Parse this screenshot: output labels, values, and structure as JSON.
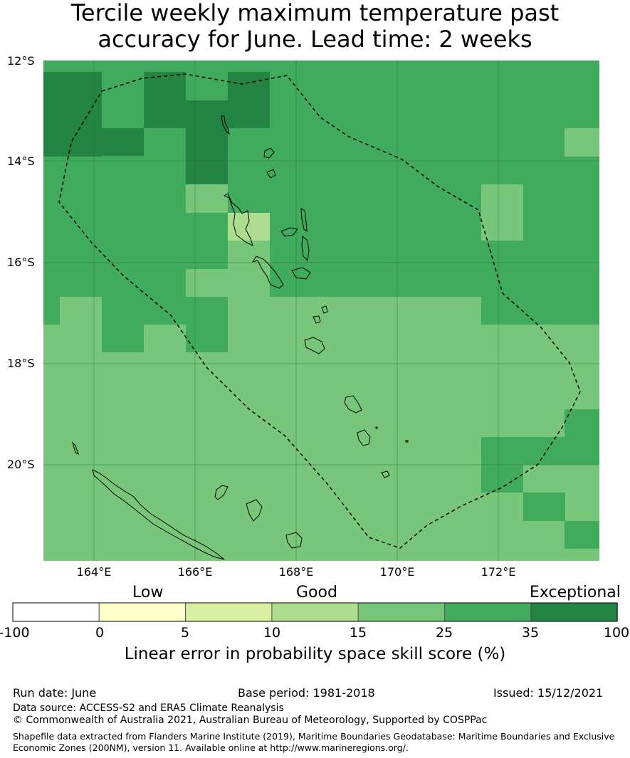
{
  "title_line1": "Tercile weekly maximum temperature past",
  "title_line2": "accuracy for June. Lead time: 2 weeks",
  "map": {
    "lat_range": [
      -21.8,
      -12.0
    ],
    "lon_range": [
      163.0,
      174.0
    ],
    "lat_ticks": [
      "12°S",
      "14°S",
      "16°S",
      "18°S",
      "20°S"
    ],
    "lon_ticks": [
      "164°E",
      "166°E",
      "168°E",
      "170°E",
      "172°E"
    ],
    "grid": true,
    "cell_degrees": 0.83
  },
  "legend": {
    "categories": [
      "Low",
      "Good",
      "Exceptional"
    ],
    "ticks": [
      "-100",
      "0",
      "5",
      "10",
      "15",
      "25",
      "35",
      "100"
    ],
    "colors": [
      "#ffffff",
      "#ffffcc",
      "#d9f0a3",
      "#addd8e",
      "#78c679",
      "#41ab5d",
      "#238443"
    ],
    "label": "Linear error in probability space skill score (%)"
  },
  "footer": {
    "run_date": "Run date: June",
    "base_period": "Base period: 1981-2018",
    "issued": "Issued: 15/12/2021",
    "data_source": "Data source: ACCESS-S2 and ERA5 Climate Reanalysis",
    "copyright": "© Commonwealth of Australia 2021, Australian Bureau of Meteorology, Supported by COSPPac",
    "shapefile": "Shapefile data extracted from Flanders Marine Institute (2019), Maritime Boundaries Geodatabase: Maritime Boundaries and Exclusive Economic Zones (200NM), version 11. Available online at http://www.marineregions.org/."
  }
}
